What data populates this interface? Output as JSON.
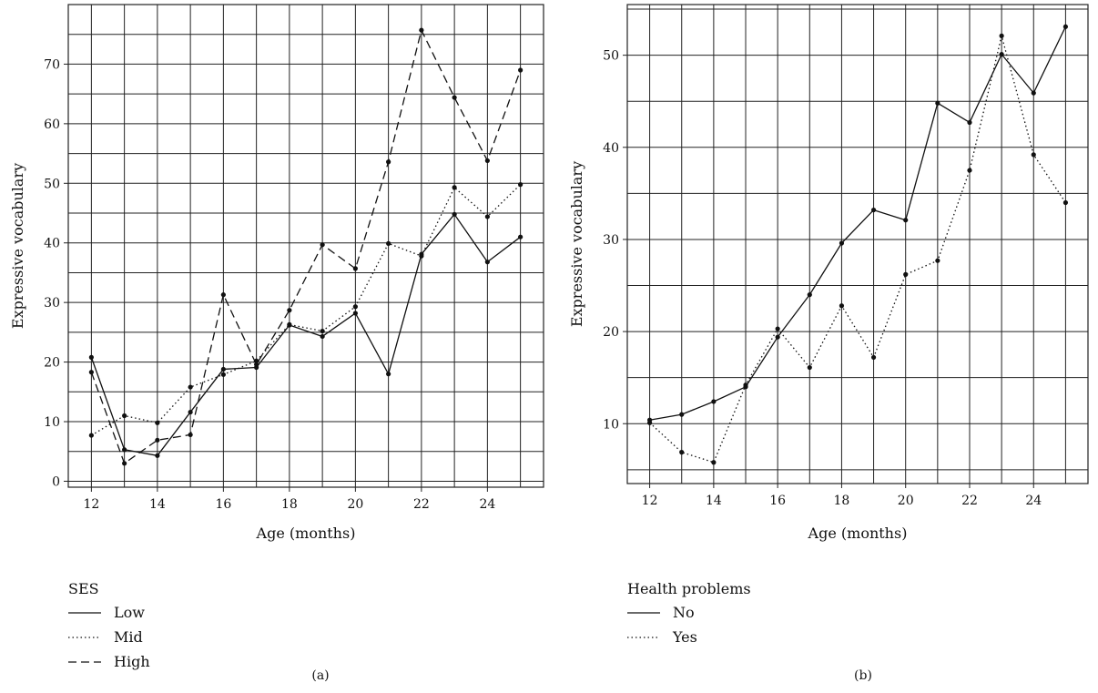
{
  "chart_data": [
    {
      "type": "line",
      "caption": "(a)",
      "xlabel": "Age (months)",
      "ylabel": "Expressive vocabulary",
      "x": [
        12,
        13,
        14,
        15,
        16,
        17,
        18,
        19,
        20,
        21,
        22,
        23,
        24,
        25
      ],
      "xticks": [
        12,
        14,
        16,
        18,
        20,
        22,
        24
      ],
      "yticks": [
        0,
        10,
        20,
        30,
        40,
        50,
        60,
        70
      ],
      "xlim": [
        11.3,
        25.7
      ],
      "ylim": [
        -1,
        80
      ],
      "grid": true,
      "legend_title": "SES",
      "legend_position": "bottom-left",
      "series": [
        {
          "name": "Low",
          "style": "solid",
          "values": [
            20.8,
            5.3,
            4.3,
            11.6,
            18.8,
            19.1,
            26.2,
            24.3,
            28.2,
            18.0,
            38.1,
            44.8,
            36.8,
            41.0
          ]
        },
        {
          "name": "Mid",
          "style": "dotted",
          "values": [
            7.7,
            11.0,
            9.8,
            15.8,
            17.9,
            20.2,
            26.3,
            25.2,
            29.3,
            39.9,
            37.8,
            49.3,
            44.4,
            49.8
          ]
        },
        {
          "name": "High",
          "style": "dashed",
          "values": [
            18.3,
            3.0,
            6.9,
            7.8,
            31.3,
            19.6,
            28.7,
            39.7,
            35.7,
            53.6,
            75.7,
            64.4,
            53.8,
            69.0
          ]
        }
      ]
    },
    {
      "type": "line",
      "caption": "(b)",
      "xlabel": "Age (months)",
      "ylabel": "Expressive vocabulary",
      "x": [
        12,
        13,
        14,
        15,
        16,
        17,
        18,
        19,
        20,
        21,
        22,
        23,
        24,
        25
      ],
      "xticks": [
        12,
        14,
        16,
        18,
        20,
        22,
        24
      ],
      "yticks": [
        10,
        20,
        30,
        40,
        50
      ],
      "xlim": [
        11.3,
        25.7
      ],
      "ylim": [
        3.5,
        55.5
      ],
      "grid": true,
      "legend_title": "Health problems",
      "legend_position": "bottom-left",
      "series": [
        {
          "name": "No",
          "style": "solid",
          "values": [
            10.4,
            11.0,
            12.4,
            14.0,
            19.4,
            24.0,
            29.6,
            33.2,
            32.1,
            44.8,
            42.7,
            50.1,
            45.9,
            53.1
          ]
        },
        {
          "name": "Yes",
          "style": "dotted",
          "values": [
            10.1,
            6.9,
            5.8,
            14.2,
            20.3,
            16.1,
            22.8,
            17.2,
            26.2,
            27.7,
            37.5,
            52.1,
            39.2,
            34.0
          ]
        }
      ]
    }
  ]
}
